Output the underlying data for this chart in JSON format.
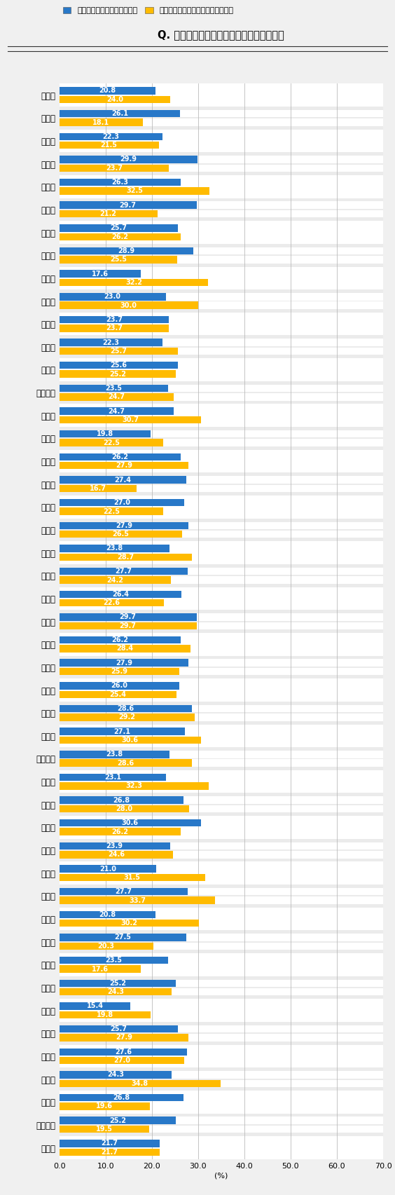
{
  "title": "Q. 都道府県別「かかりつけの眼科」の有無",
  "legend_blue": "定期的に受診する眼科がある",
  "legend_yellow": "異常を感じたら受診する眼科がある",
  "xlabel": "(%)",
  "xlim": [
    0,
    70
  ],
  "xticks": [
    0.0,
    10.0,
    20.0,
    30.0,
    40.0,
    50.0,
    60.0,
    70.0
  ],
  "xtick_labels": [
    "0.0",
    "10.0",
    "20.0",
    "30.0",
    "40.0",
    "50.0",
    "60.0",
    "70.0"
  ],
  "blue_color": "#2878C8",
  "yellow_color": "#FFBB00",
  "bg_color": "#F0F0F0",
  "row_white": "#FFFFFF",
  "row_gray": "#EBEBEB",
  "prefectures": [
    "北海道",
    "青森県",
    "岩手県",
    "宮城県",
    "秋田県",
    "山形県",
    "福島県",
    "茨城県",
    "栃木県",
    "群馬県",
    "埼玉県",
    "千葉県",
    "東京都",
    "神奈川県",
    "新潟県",
    "富山県",
    "石川県",
    "福井県",
    "山梨県",
    "長野県",
    "岐阜県",
    "静岡県",
    "愛知県",
    "三重県",
    "滋賀県",
    "京都府",
    "大阪府",
    "兵庫県",
    "奈良県",
    "和歌山県",
    "鳥取県",
    "島根県",
    "岡山県",
    "広島県",
    "山口県",
    "徳島県",
    "香川県",
    "愛媛県",
    "高知県",
    "福岡県",
    "佐賀県",
    "長崎県",
    "熊本県",
    "大分県",
    "宮崎県",
    "鹿児島県",
    "沖縄県"
  ],
  "blue_values": [
    20.8,
    26.1,
    22.3,
    29.9,
    26.3,
    29.7,
    25.7,
    28.9,
    17.6,
    23.0,
    23.7,
    22.3,
    25.6,
    23.5,
    24.7,
    19.8,
    26.2,
    27.4,
    27.0,
    27.9,
    23.8,
    27.7,
    26.4,
    29.7,
    26.2,
    27.9,
    26.0,
    28.6,
    27.1,
    23.8,
    23.1,
    26.8,
    30.6,
    23.9,
    21.0,
    27.7,
    20.8,
    27.5,
    23.5,
    25.2,
    15.4,
    25.7,
    27.6,
    24.3,
    26.8,
    25.2,
    21.7
  ],
  "yellow_values": [
    24.0,
    18.1,
    21.5,
    23.7,
    32.5,
    21.2,
    26.2,
    25.5,
    32.2,
    30.0,
    23.7,
    25.7,
    25.2,
    24.7,
    30.7,
    22.5,
    27.9,
    16.7,
    22.5,
    26.5,
    28.7,
    24.2,
    22.6,
    29.7,
    28.4,
    25.9,
    25.4,
    29.2,
    30.6,
    28.6,
    32.3,
    28.0,
    26.2,
    24.6,
    31.5,
    33.7,
    30.2,
    20.3,
    17.6,
    24.3,
    19.8,
    27.9,
    27.0,
    34.8,
    19.6,
    19.5,
    21.7
  ]
}
